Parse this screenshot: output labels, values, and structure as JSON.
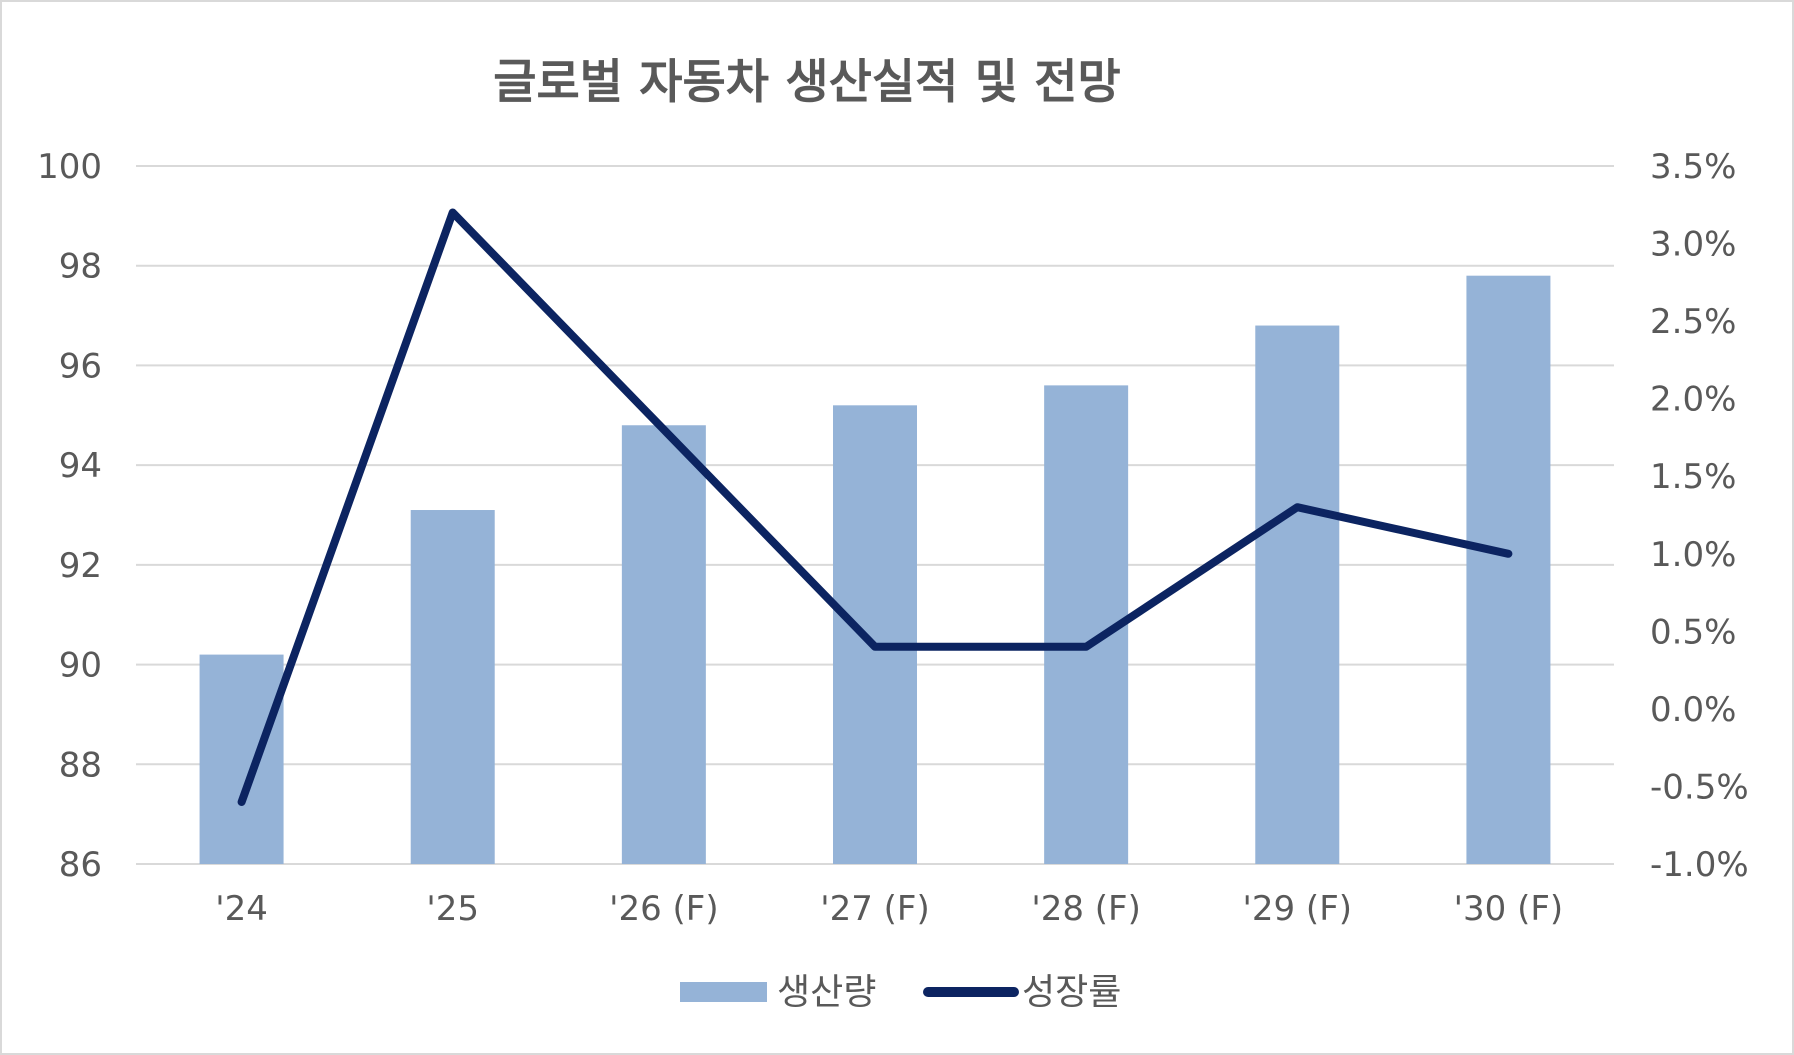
{
  "chart_data": {
    "type": "bar",
    "title": "글로벌 자동차 생산실적 및 전망",
    "categories": [
      "'24",
      "'25",
      "'26 (F)",
      "'27 (F)",
      "'28 (F)",
      "'29 (F)",
      "'30 (F)"
    ],
    "series": [
      {
        "name": "생산량",
        "type": "bar",
        "axis": "left",
        "color": "#95b3d7",
        "values": [
          90.2,
          93.1,
          94.8,
          95.2,
          95.6,
          96.8,
          97.8
        ]
      },
      {
        "name": "성장률",
        "type": "line",
        "axis": "right",
        "color": "#0c2461",
        "values": [
          -0.6,
          3.2,
          1.8,
          0.4,
          0.4,
          1.3,
          1.0
        ]
      }
    ],
    "y_left": {
      "ylim": [
        86,
        100
      ],
      "ticks": [
        86,
        88,
        90,
        92,
        94,
        96,
        98,
        100
      ],
      "tick_labels": [
        "86",
        "88",
        "90",
        "92",
        "94",
        "96",
        "98",
        "100"
      ]
    },
    "y_right": {
      "ylim": [
        -1.0,
        3.5
      ],
      "ticks": [
        -1.0,
        -0.5,
        0.0,
        0.5,
        1.0,
        1.5,
        2.0,
        2.5,
        3.0,
        3.5
      ],
      "tick_labels": [
        "-1.0%",
        "-0.5%",
        "0.0%",
        "0.5%",
        "1.0%",
        "1.5%",
        "2.0%",
        "2.5%",
        "3.0%",
        "3.5%"
      ]
    },
    "grid": true,
    "gridline_color": "#d9d9d9",
    "legend_position": "bottom"
  }
}
